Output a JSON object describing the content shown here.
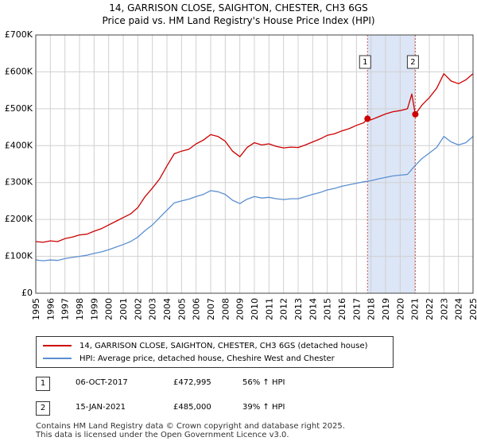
{
  "title_line1": "14, GARRISON CLOSE, SAIGHTON, CHESTER, CH3 6GS",
  "title_line2": "Price paid vs. HM Land Registry's House Price Index (HPI)",
  "colors": {
    "property": "#cc0000",
    "hpi": "#5b8fd0",
    "shade": "#dde6f6",
    "grid": "#d0d0d0",
    "marker_line": "#cc5555"
  },
  "chart_data": {
    "type": "line",
    "title": "Price paid vs. HM Land Registry's House Price Index (HPI)",
    "xlim": [
      1995,
      2025
    ],
    "ylim": [
      0,
      700000
    ],
    "y_ticks": [
      0,
      100000,
      200000,
      300000,
      400000,
      500000,
      600000,
      700000
    ],
    "y_tick_labels": [
      "£0",
      "£100K",
      "£200K",
      "£300K",
      "£400K",
      "£500K",
      "£600K",
      "£700K"
    ],
    "x_ticks": [
      1995,
      1996,
      1997,
      1998,
      1999,
      2000,
      2001,
      2002,
      2003,
      2004,
      2005,
      2006,
      2007,
      2008,
      2009,
      2010,
      2011,
      2012,
      2013,
      2014,
      2015,
      2016,
      2017,
      2018,
      2019,
      2020,
      2021,
      2022,
      2023,
      2024,
      2025
    ],
    "x_tick_labels": [
      "1995",
      "1996",
      "1997",
      "1998",
      "1999",
      "2000",
      "2001",
      "2002",
      "2003",
      "2004",
      "2005",
      "2006",
      "2007",
      "2008",
      "2009",
      "2010",
      "2011",
      "2012",
      "2013",
      "2014",
      "2015",
      "2016",
      "2017",
      "2018",
      "2019",
      "2020",
      "2021",
      "2022",
      "2023",
      "2024",
      "2025"
    ],
    "grid": true,
    "shaded_period": [
      2017.76,
      2021.04
    ],
    "series": [
      {
        "name": "14, GARRISON CLOSE, SAIGHTON, CHESTER, CH3 6GS (detached house)",
        "color": "#cc0000",
        "x": [
          1995.0,
          1995.5,
          1996.0,
          1996.5,
          1997.0,
          1997.5,
          1998.0,
          1998.5,
          1999.0,
          1999.5,
          2000.0,
          2000.5,
          2001.0,
          2001.5,
          2002.0,
          2002.5,
          2003.0,
          2003.5,
          2004.0,
          2004.5,
          2005.0,
          2005.5,
          2006.0,
          2006.5,
          2007.0,
          2007.5,
          2008.0,
          2008.5,
          2009.0,
          2009.5,
          2010.0,
          2010.5,
          2011.0,
          2011.5,
          2012.0,
          2012.5,
          2013.0,
          2013.5,
          2014.0,
          2014.5,
          2015.0,
          2015.5,
          2016.0,
          2016.5,
          2017.0,
          2017.5,
          2017.76,
          2018.0,
          2018.5,
          2019.0,
          2019.5,
          2020.0,
          2020.5,
          2020.8,
          2021.04,
          2021.5,
          2022.0,
          2022.5,
          2023.0,
          2023.5,
          2024.0,
          2024.5,
          2025.0
        ],
        "values": [
          140000,
          138000,
          142000,
          140000,
          148000,
          152000,
          158000,
          160000,
          168000,
          175000,
          185000,
          195000,
          205000,
          215000,
          232000,
          262000,
          285000,
          310000,
          345000,
          378000,
          385000,
          390000,
          405000,
          415000,
          430000,
          425000,
          412000,
          385000,
          370000,
          395000,
          408000,
          402000,
          405000,
          398000,
          394000,
          396000,
          395000,
          402000,
          410000,
          418000,
          428000,
          432000,
          440000,
          446000,
          455000,
          462000,
          472995,
          470000,
          478000,
          486000,
          492000,
          495000,
          500000,
          540000,
          485000,
          510000,
          530000,
          555000,
          595000,
          575000,
          568000,
          578000,
          595000
        ]
      },
      {
        "name": "HPI: Average price, detached house, Cheshire West and Chester",
        "color": "#5b8fd0",
        "x": [
          1995.0,
          1995.5,
          1996.0,
          1996.5,
          1997.0,
          1997.5,
          1998.0,
          1998.5,
          1999.0,
          1999.5,
          2000.0,
          2000.5,
          2001.0,
          2001.5,
          2002.0,
          2002.5,
          2003.0,
          2003.5,
          2004.0,
          2004.5,
          2005.0,
          2005.5,
          2006.0,
          2006.5,
          2007.0,
          2007.5,
          2008.0,
          2008.5,
          2009.0,
          2009.5,
          2010.0,
          2010.5,
          2011.0,
          2011.5,
          2012.0,
          2012.5,
          2013.0,
          2013.5,
          2014.0,
          2014.5,
          2015.0,
          2015.5,
          2016.0,
          2016.5,
          2017.0,
          2017.5,
          2018.0,
          2018.5,
          2019.0,
          2019.5,
          2020.0,
          2020.5,
          2021.0,
          2021.5,
          2022.0,
          2022.5,
          2023.0,
          2023.5,
          2024.0,
          2024.5,
          2025.0
        ],
        "values": [
          90000,
          88000,
          90000,
          89000,
          94000,
          97000,
          100000,
          103000,
          108000,
          112000,
          118000,
          125000,
          132000,
          140000,
          152000,
          170000,
          185000,
          205000,
          225000,
          245000,
          250000,
          255000,
          262000,
          268000,
          278000,
          275000,
          268000,
          252000,
          243000,
          255000,
          262000,
          258000,
          260000,
          256000,
          254000,
          256000,
          256000,
          262000,
          268000,
          273000,
          280000,
          284000,
          290000,
          294000,
          298000,
          302000,
          305000,
          310000,
          314000,
          318000,
          320000,
          322000,
          345000,
          365000,
          380000,
          395000,
          425000,
          410000,
          402000,
          408000,
          425000
        ]
      }
    ],
    "annotations": [
      {
        "label": "1",
        "x": 2017.76,
        "value": 472995
      },
      {
        "label": "2",
        "x": 2021.04,
        "value": 485000
      }
    ]
  },
  "legend": [
    {
      "label": "14, GARRISON CLOSE, SAIGHTON, CHESTER, CH3 6GS (detached house)"
    },
    {
      "label": "HPI: Average price, detached house, Cheshire West and Chester"
    }
  ],
  "transactions": [
    {
      "num": "1",
      "date": "06-OCT-2017",
      "price": "£472,995",
      "hpi": "56% ↑ HPI"
    },
    {
      "num": "2",
      "date": "15-JAN-2021",
      "price": "£485,000",
      "hpi": "39% ↑ HPI"
    }
  ],
  "footer_line1": "Contains HM Land Registry data © Crown copyright and database right 2025.",
  "footer_line2": "This data is licensed under the Open Government Licence v3.0."
}
